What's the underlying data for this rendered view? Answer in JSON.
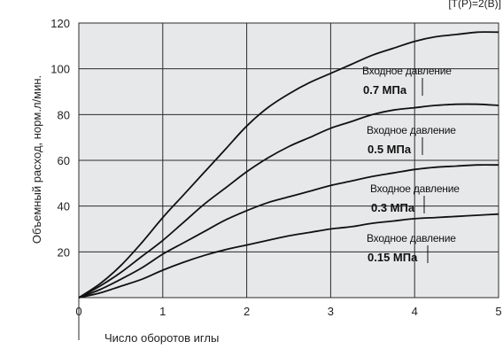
{
  "corner_label": "[Т(Р)=2(В)]",
  "colors": {
    "plot_bg": "#e7e8ea",
    "grid": "#2b2b2b",
    "curve": "#111111",
    "text": "#222222"
  },
  "chart_data": {
    "type": "line",
    "title": "",
    "xlabel": "Число оборотов иглы",
    "ylabel": "Объемный расход, норм.л/мин.",
    "xlim": [
      0,
      5
    ],
    "ylim": [
      0,
      120
    ],
    "x_ticks": [
      "0",
      "1",
      "2",
      "3",
      "4",
      "5"
    ],
    "y_ticks": [
      "20",
      "40",
      "60",
      "80",
      "100",
      "120"
    ],
    "grid": true,
    "legend": "none",
    "series": [
      {
        "label": "Входное давление",
        "pressure": "0.7 МПа",
        "x": [
          0,
          0.25,
          0.5,
          0.75,
          1.0,
          1.25,
          1.5,
          1.75,
          2.0,
          2.25,
          2.5,
          2.75,
          3.0,
          3.25,
          3.5,
          3.75,
          4.0,
          4.25,
          4.5,
          4.75,
          5.0
        ],
        "y": [
          0,
          6,
          14,
          24,
          35,
          45,
          55,
          65,
          75,
          83,
          89,
          94,
          98,
          102,
          106,
          109,
          112,
          114,
          115,
          116,
          116
        ]
      },
      {
        "label": "Входное давление",
        "pressure": "0.5 МПа",
        "x": [
          0,
          0.25,
          0.5,
          0.75,
          1.0,
          1.25,
          1.5,
          1.75,
          2.0,
          2.25,
          2.5,
          2.75,
          3.0,
          3.25,
          3.5,
          3.75,
          4.0,
          4.25,
          4.5,
          4.75,
          5.0
        ],
        "y": [
          0,
          5,
          11,
          18,
          25,
          33,
          41,
          48,
          55,
          61,
          66,
          70,
          74,
          77,
          80,
          82,
          83,
          84,
          84.5,
          84.5,
          84
        ]
      },
      {
        "label": "Входное давление",
        "pressure": "0.3 МПа",
        "x": [
          0,
          0.25,
          0.5,
          0.75,
          1.0,
          1.25,
          1.5,
          1.75,
          2.0,
          2.25,
          2.5,
          2.75,
          3.0,
          3.25,
          3.5,
          3.75,
          4.0,
          4.25,
          4.5,
          4.75,
          5.0
        ],
        "y": [
          0,
          3.5,
          8,
          13,
          19,
          24,
          29,
          34,
          38,
          41.5,
          44,
          46.5,
          49,
          51,
          53,
          54.5,
          56,
          57,
          57.5,
          58,
          58
        ]
      },
      {
        "label": "Входное давление",
        "pressure": "0.15 МПа",
        "x": [
          0,
          0.25,
          0.5,
          0.75,
          1.0,
          1.25,
          1.5,
          1.75,
          2.0,
          2.25,
          2.5,
          2.75,
          3.0,
          3.25,
          3.5,
          3.75,
          4.0,
          4.25,
          4.5,
          4.75,
          5.0
        ],
        "y": [
          0,
          2,
          5,
          8,
          12,
          15.5,
          18.5,
          21,
          23,
          25,
          27,
          28.5,
          30,
          31,
          32.5,
          33.5,
          34.5,
          35,
          35.5,
          36,
          36.5
        ]
      }
    ]
  }
}
